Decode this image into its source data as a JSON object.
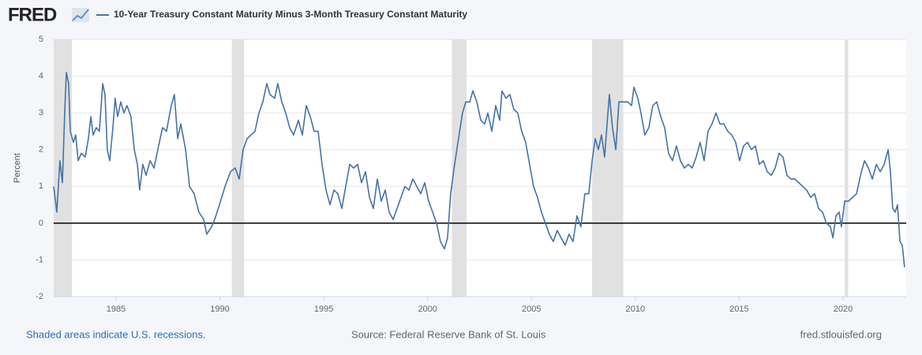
{
  "chart_data": {
    "type": "line",
    "logo": "FRED",
    "ylabel": "Percent",
    "footer_left": "Shaded areas indicate U.S. recessions.",
    "footer_center": "Source: Federal Reserve Bank of St. Louis",
    "footer_right": "fred.stlouisfed.org",
    "xlim": [
      1982,
      2023.04
    ],
    "xticks": [
      1985,
      1990,
      1995,
      2000,
      2005,
      2010,
      2015,
      2020
    ],
    "ylim": [
      -2,
      5
    ],
    "yticks": [
      -2,
      -1,
      0,
      1,
      2,
      3,
      4,
      5
    ],
    "grid": true,
    "recession_color": "#e1e1e1",
    "recessions": [
      [
        1981.58,
        1982.88
      ],
      [
        1990.58,
        1991.17
      ],
      [
        2001.17,
        2001.88
      ],
      [
        2007.92,
        2009.42
      ],
      [
        2020.08,
        2020.25
      ]
    ],
    "x": [
      1982.0,
      1982.15,
      1982.3,
      1982.42,
      1982.53,
      1982.61,
      1982.72,
      1982.8,
      1982.95,
      1983.06,
      1983.18,
      1983.33,
      1983.52,
      1983.67,
      1983.79,
      1983.9,
      1984.05,
      1984.2,
      1984.36,
      1984.47,
      1984.58,
      1984.7,
      1984.85,
      1984.96,
      1985.08,
      1985.23,
      1985.38,
      1985.53,
      1985.72,
      1985.88,
      1986.03,
      1986.14,
      1986.29,
      1986.45,
      1986.64,
      1986.83,
      1987.05,
      1987.24,
      1987.43,
      1987.66,
      1987.81,
      1987.97,
      1988.12,
      1988.35,
      1988.54,
      1988.76,
      1988.99,
      1989.22,
      1989.37,
      1989.6,
      1989.75,
      1989.98,
      1990.25,
      1990.51,
      1990.74,
      1990.93,
      1991.12,
      1991.31,
      1991.5,
      1991.69,
      1991.88,
      1992.07,
      1992.26,
      1992.41,
      1992.64,
      1992.79,
      1992.98,
      1993.17,
      1993.36,
      1993.55,
      1993.78,
      1993.97,
      1994.16,
      1994.35,
      1994.54,
      1994.73,
      1994.92,
      1995.11,
      1995.3,
      1995.49,
      1995.68,
      1995.87,
      1996.06,
      1996.25,
      1996.44,
      1996.63,
      1996.82,
      1997.01,
      1997.2,
      1997.39,
      1997.58,
      1997.77,
      1997.96,
      1998.15,
      1998.34,
      1998.53,
      1998.72,
      1998.91,
      1999.1,
      1999.29,
      1999.48,
      1999.67,
      1999.86,
      2000.05,
      2000.24,
      2000.43,
      2000.62,
      2000.81,
      2000.96,
      2001.11,
      2001.3,
      2001.49,
      2001.68,
      2001.84,
      2002.03,
      2002.18,
      2002.37,
      2002.56,
      2002.75,
      2002.9,
      2003.09,
      2003.28,
      2003.47,
      2003.58,
      2003.77,
      2003.96,
      2004.15,
      2004.34,
      2004.53,
      2004.72,
      2004.91,
      2005.1,
      2005.29,
      2005.48,
      2005.67,
      2005.86,
      2006.05,
      2006.24,
      2006.43,
      2006.62,
      2006.81,
      2007.0,
      2007.19,
      2007.38,
      2007.57,
      2007.76,
      2007.92,
      2008.07,
      2008.22,
      2008.37,
      2008.52,
      2008.68,
      2008.75,
      2008.9,
      2009.06,
      2009.21,
      2009.44,
      2009.63,
      2009.82,
      2009.93,
      2010.12,
      2010.27,
      2010.46,
      2010.65,
      2010.84,
      2011.03,
      2011.22,
      2011.41,
      2011.6,
      2011.79,
      2011.98,
      2012.17,
      2012.36,
      2012.55,
      2012.74,
      2012.93,
      2013.12,
      2013.31,
      2013.5,
      2013.69,
      2013.88,
      2014.07,
      2014.26,
      2014.45,
      2014.64,
      2014.83,
      2015.02,
      2015.21,
      2015.4,
      2015.59,
      2015.78,
      2015.97,
      2016.16,
      2016.35,
      2016.54,
      2016.73,
      2016.92,
      2017.11,
      2017.3,
      2017.49,
      2017.68,
      2017.87,
      2018.06,
      2018.25,
      2018.44,
      2018.63,
      2018.82,
      2019.01,
      2019.2,
      2019.39,
      2019.51,
      2019.66,
      2019.81,
      2019.92,
      2020.08,
      2020.27,
      2020.46,
      2020.65,
      2020.84,
      2021.03,
      2021.22,
      2021.41,
      2021.6,
      2021.79,
      2021.98,
      2022.17,
      2022.28,
      2022.39,
      2022.51,
      2022.62,
      2022.74,
      2022.85,
      2022.96
    ],
    "series": [
      {
        "name": "10-Year Treasury Constant Maturity Minus 3-Month Treasury Constant Maturity",
        "color": "#4572a7",
        "values": [
          1.0,
          0.3,
          1.7,
          1.1,
          3.0,
          4.1,
          3.8,
          2.5,
          2.2,
          2.4,
          1.7,
          1.9,
          1.8,
          2.3,
          2.9,
          2.4,
          2.6,
          2.5,
          3.8,
          3.5,
          2.0,
          1.7,
          2.6,
          3.4,
          2.9,
          3.3,
          3.0,
          3.2,
          2.9,
          2.0,
          1.6,
          0.9,
          1.6,
          1.3,
          1.7,
          1.5,
          2.1,
          2.6,
          2.5,
          3.2,
          3.5,
          2.3,
          2.7,
          2.0,
          1.0,
          0.8,
          0.3,
          0.1,
          -0.3,
          -0.1,
          0.1,
          0.5,
          1.0,
          1.4,
          1.5,
          1.2,
          2.0,
          2.3,
          2.4,
          2.5,
          3.0,
          3.3,
          3.8,
          3.5,
          3.4,
          3.8,
          3.3,
          3.0,
          2.6,
          2.4,
          2.8,
          2.4,
          3.2,
          2.9,
          2.5,
          2.5,
          1.6,
          0.9,
          0.5,
          0.9,
          0.8,
          0.4,
          1.0,
          1.6,
          1.5,
          1.6,
          1.1,
          1.4,
          0.7,
          0.4,
          1.2,
          0.6,
          0.9,
          0.3,
          0.1,
          0.4,
          0.7,
          1.0,
          0.9,
          1.2,
          1.0,
          0.8,
          1.1,
          0.6,
          0.3,
          0.0,
          -0.5,
          -0.7,
          -0.4,
          0.8,
          1.6,
          2.3,
          3.0,
          3.3,
          3.3,
          3.6,
          3.3,
          2.8,
          2.7,
          3.0,
          2.5,
          3.2,
          2.8,
          3.6,
          3.4,
          3.5,
          3.1,
          3.0,
          2.5,
          2.2,
          1.6,
          1.0,
          0.7,
          0.3,
          0.0,
          -0.3,
          -0.5,
          -0.2,
          -0.4,
          -0.6,
          -0.3,
          -0.5,
          0.2,
          -0.1,
          0.8,
          0.8,
          1.7,
          2.3,
          2.0,
          2.4,
          1.8,
          3.0,
          3.5,
          2.6,
          2.0,
          3.3,
          3.3,
          3.3,
          3.2,
          3.7,
          3.4,
          3.0,
          2.4,
          2.6,
          3.2,
          3.3,
          2.9,
          2.6,
          1.9,
          1.7,
          2.1,
          1.7,
          1.5,
          1.6,
          1.5,
          1.8,
          2.2,
          1.7,
          2.5,
          2.7,
          3.0,
          2.7,
          2.7,
          2.5,
          2.4,
          2.2,
          1.7,
          2.1,
          2.2,
          2.0,
          2.1,
          1.6,
          1.7,
          1.4,
          1.3,
          1.5,
          1.9,
          1.8,
          1.3,
          1.2,
          1.2,
          1.1,
          1.0,
          0.9,
          0.7,
          0.8,
          0.4,
          0.3,
          0.0,
          -0.1,
          -0.4,
          0.2,
          0.3,
          -0.1,
          0.6,
          0.6,
          0.7,
          0.8,
          1.3,
          1.7,
          1.5,
          1.2,
          1.6,
          1.4,
          1.6,
          2.0,
          1.4,
          0.4,
          0.3,
          0.5,
          -0.5,
          -0.6,
          -1.2
        ]
      }
    ]
  }
}
